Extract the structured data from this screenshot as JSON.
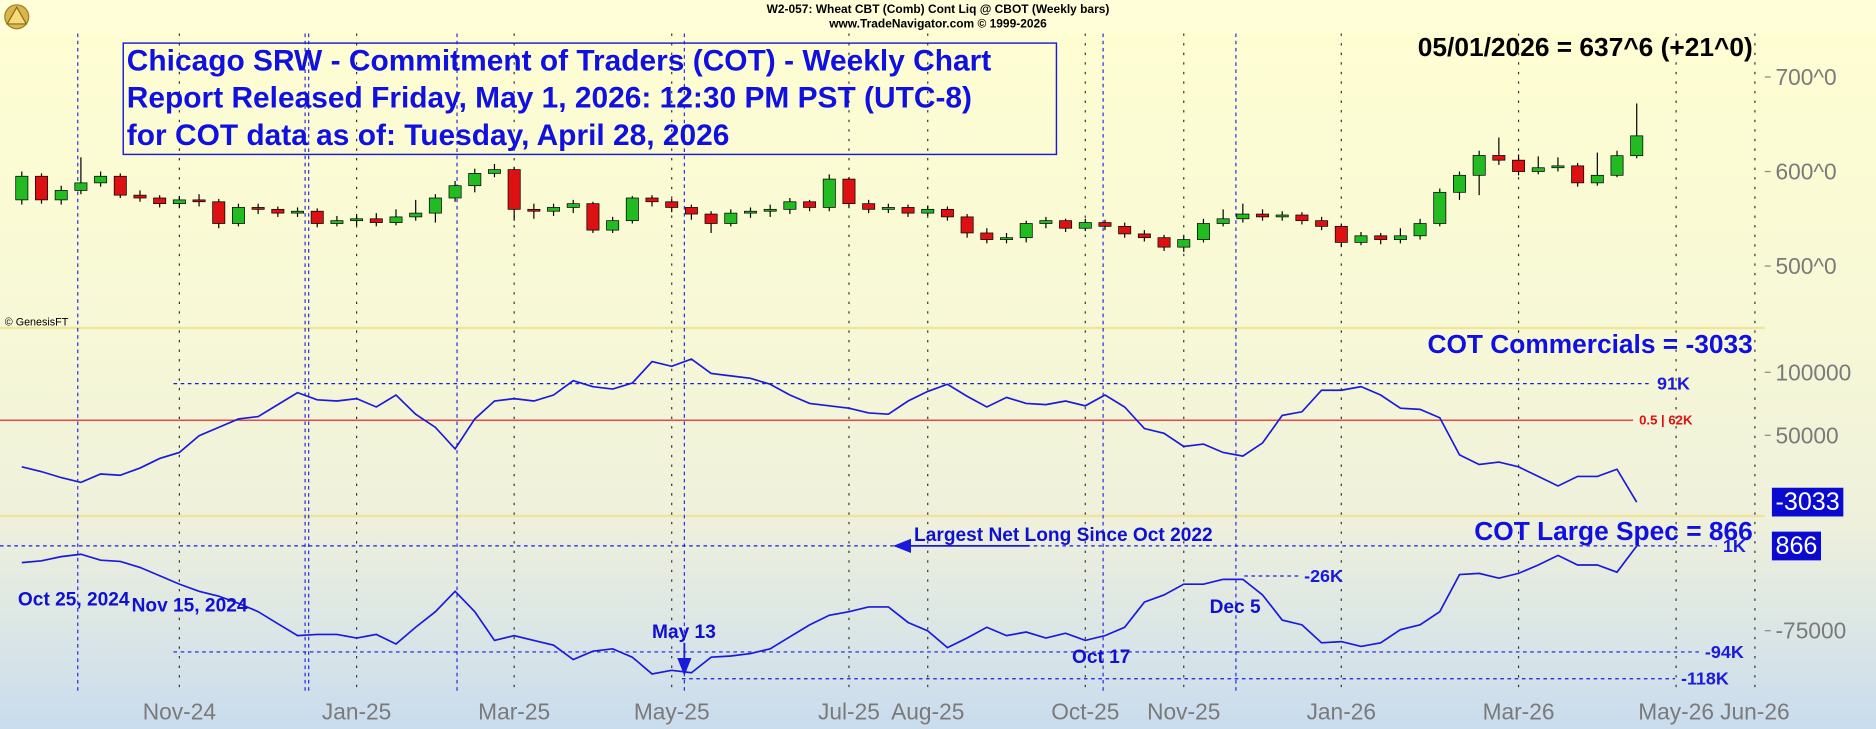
{
  "chart_data": [
    {
      "type": "candlestick",
      "source_lines": [
        "W2-057:  Wheat CBT (Comb) Cont Liq @ CBOT  (Weekly bars)",
        "www.TradeNavigator.com © 1999-2026"
      ],
      "title_lines": [
        "Chicago SRW - Commitment of Traders (COT) - Weekly Chart",
        "Report Released Friday, May 1, 2026: 12:30 PM PST (UTC-8)",
        "for COT data as of: Tuesday, April 28, 2026"
      ],
      "last_price_label": "05/01/2026 = 637^6 (+21^0)",
      "credit": "© GenesisFT",
      "ylim": [
        437,
        746
      ],
      "yticks": [
        {
          "value": 500,
          "label": "500^0"
        },
        {
          "value": 600,
          "label": "600^0"
        },
        {
          "value": 700,
          "label": "700^0"
        }
      ],
      "up_color": "#22bb22",
      "down_color": "#dd1111",
      "open": [
        570,
        595,
        570,
        580,
        588,
        595,
        575,
        572,
        566,
        570,
        568,
        545,
        562,
        560,
        556,
        558,
        545,
        548,
        550,
        546,
        552,
        556,
        572,
        585,
        598,
        602,
        560,
        558,
        562,
        566,
        538,
        548,
        572,
        568,
        562,
        555,
        545,
        556,
        558,
        560,
        568,
        562,
        592,
        566,
        560,
        562,
        556,
        560,
        552,
        535,
        528,
        530,
        545,
        548,
        540,
        546,
        542,
        534,
        530,
        520,
        528,
        545,
        550,
        555,
        552,
        554,
        548,
        542,
        525,
        532,
        528,
        532,
        545,
        578,
        596,
        617,
        612,
        600,
        604,
        606,
        588,
        596,
        616.75
      ],
      "high": [
        600,
        598,
        585,
        615,
        600,
        598,
        580,
        575,
        574,
        576,
        571,
        566,
        566,
        563,
        562,
        561,
        553,
        555,
        556,
        560,
        570,
        576,
        590,
        603,
        608,
        605,
        566,
        566,
        570,
        568,
        552,
        574,
        575,
        571,
        565,
        558,
        560,
        562,
        565,
        572,
        570,
        597,
        594,
        570,
        566,
        565,
        564,
        563,
        555,
        540,
        535,
        548,
        552,
        550,
        550,
        549,
        546,
        538,
        533,
        532,
        550,
        560,
        566,
        560,
        558,
        557,
        552,
        545,
        536,
        535,
        540,
        550,
        582,
        600,
        622,
        636,
        618,
        616,
        615,
        609,
        620,
        622,
        672
      ],
      "low": [
        565,
        566,
        565,
        576,
        584,
        572,
        568,
        562,
        562,
        563,
        540,
        542,
        555,
        552,
        552,
        541,
        542,
        543,
        542,
        543,
        548,
        546,
        568,
        578,
        594,
        548,
        550,
        553,
        556,
        535,
        535,
        545,
        563,
        557,
        549,
        535,
        542,
        551,
        552,
        555,
        558,
        558,
        562,
        556,
        556,
        552,
        553,
        548,
        530,
        524,
        524,
        525,
        540,
        536,
        537,
        538,
        530,
        526,
        516,
        515,
        525,
        542,
        546,
        548,
        548,
        544,
        538,
        520,
        522,
        523,
        524,
        528,
        542,
        570,
        575,
        607,
        596,
        597,
        600,
        584,
        585,
        594,
        614
      ],
      "close": [
        595,
        570,
        580,
        588,
        595,
        575,
        572,
        566,
        570,
        568,
        545,
        562,
        560,
        556,
        558,
        545,
        548,
        550,
        546,
        552,
        556,
        572,
        585,
        598,
        602,
        560,
        558,
        562,
        566,
        538,
        548,
        572,
        568,
        562,
        555,
        545,
        556,
        558,
        560,
        568,
        562,
        592,
        566,
        560,
        562,
        556,
        560,
        552,
        535,
        528,
        530,
        545,
        548,
        540,
        546,
        542,
        534,
        530,
        520,
        528,
        545,
        550,
        555,
        552,
        554,
        548,
        542,
        525,
        532,
        528,
        532,
        545,
        578,
        596,
        617,
        612,
        600,
        604,
        606,
        588,
        596,
        616.75,
        637.75
      ]
    },
    {
      "type": "line",
      "title": "COT Commercials = -3033",
      "color": "#1a1adb",
      "ylim": [
        -13050,
        134200
      ],
      "yticks": [
        50000,
        100000
      ],
      "reference_lines": [
        {
          "value": 91000,
          "label": "91K",
          "color": "#1a1adb",
          "dashed": true
        },
        {
          "value": 62000,
          "label": "0.5 | 62K",
          "color": "#e01010",
          "dashed": false
        }
      ],
      "values": [
        24950,
        21150,
        16400,
        12600,
        19250,
        18300,
        24000,
        31600,
        36350,
        49650,
        56300,
        62950,
        64850,
        74350,
        83850,
        78150,
        77200,
        79100,
        72450,
        81950,
        66750,
        56300,
        39200,
        62950,
        77200,
        79100,
        77200,
        81950,
        93350,
        88600,
        86700,
        91450,
        108550,
        104750,
        110450,
        99050,
        97150,
        95250,
        90500,
        81950,
        75300,
        73400,
        71500,
        67700,
        66750,
        77200,
        84800,
        90500,
        81000,
        72450,
        80050,
        75300,
        74350,
        77200,
        73400,
        81950,
        72450,
        55350,
        51550,
        41100,
        43000,
        36350,
        33500,
        43950,
        65800,
        68650,
        85750,
        85750,
        88600,
        81950,
        71500,
        70550,
        63900,
        34450,
        26850,
        28750,
        24950,
        17350,
        9750,
        17350,
        17350,
        23050,
        -3033,
        null,
        null,
        null,
        null,
        null,
        null
      ]
    },
    {
      "type": "line",
      "title": "COT Large Spec = 866",
      "color": "#1a1adb",
      "ylim": [
        -131930,
        26730
      ],
      "yticks": [
        -75000
      ],
      "reference_lines": [
        {
          "value": 1000,
          "label": "1K",
          "color": "#1a1adb",
          "dashed": true
        },
        {
          "value": -26000,
          "label": "-26K",
          "color": "#1a1adb",
          "dashed": true
        },
        {
          "value": -94000,
          "label": "-94K",
          "color": "#1a1adb",
          "dashed": true
        },
        {
          "value": -118000,
          "label": "-118K",
          "color": "#1a1adb",
          "dashed": true
        }
      ],
      "annotations": [
        "Largest Net Long Since Oct 2022",
        "Oct 25, 2024",
        "Nov 15, 2024",
        "May 13",
        "Oct 17",
        "Dec 5"
      ],
      "categories": [
        null,
        null,
        null,
        null,
        null,
        null,
        null,
        null,
        "Nov-24",
        null,
        null,
        null,
        null,
        null,
        null,
        null,
        null,
        "Jan-25",
        null,
        null,
        null,
        null,
        null,
        null,
        null,
        "Mar-25",
        null,
        null,
        null,
        null,
        null,
        null,
        null,
        "May-25",
        null,
        null,
        null,
        null,
        null,
        null,
        null,
        null,
        "Jul-25",
        null,
        null,
        null,
        "Aug-25",
        null,
        null,
        null,
        null,
        null,
        null,
        null,
        "Oct-25",
        null,
        null,
        null,
        null,
        "Nov-25",
        null,
        null,
        null,
        null,
        null,
        null,
        null,
        "Jan-26",
        null,
        null,
        null,
        null,
        null,
        null,
        null,
        null,
        "Mar-26",
        null,
        null,
        null,
        null,
        null,
        null,
        null,
        "May-26",
        null,
        null,
        null,
        "Jun-26"
      ],
      "values": [
        -14000,
        -12400,
        -8700,
        -6500,
        -11900,
        -12900,
        -18300,
        -25800,
        -33300,
        -39700,
        -44000,
        -50500,
        -58000,
        -68700,
        -79400,
        -78300,
        -78300,
        -81500,
        -78300,
        -86900,
        -71900,
        -58000,
        -39700,
        -58000,
        -83700,
        -79400,
        -83700,
        -88000,
        -100800,
        -93300,
        -91200,
        -98700,
        -113700,
        -110500,
        -112600,
        -98700,
        -97600,
        -95500,
        -91200,
        -80500,
        -69800,
        -61200,
        -58000,
        -53700,
        -53700,
        -67600,
        -75100,
        -90100,
        -81500,
        -71900,
        -79400,
        -76200,
        -81500,
        -77300,
        -83700,
        -79400,
        -71900,
        -49400,
        -43000,
        -33300,
        -33300,
        -29000,
        -29000,
        -43000,
        -65500,
        -69800,
        -85800,
        -84800,
        -89100,
        -85800,
        -74000,
        -69800,
        -58000,
        -24700,
        -23700,
        -27900,
        -23700,
        -16200,
        -7600,
        -16200,
        -16200,
        -22600,
        866,
        null,
        null,
        null,
        null,
        null,
        null
      ]
    }
  ]
}
